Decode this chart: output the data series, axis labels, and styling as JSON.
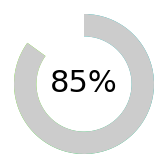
{
  "percentage": 85,
  "label": "85%",
  "empty_color": "#cccccc",
  "background_color": "#ffffff",
  "donut_outer_r": 0.5,
  "donut_width": 0.16,
  "label_fontsize": 22,
  "start_angle": 90,
  "color_stops": [
    [
      0.0,
      [
        0,
        185,
        185
      ]
    ],
    [
      0.15,
      [
        0,
        175,
        175
      ]
    ],
    [
      0.3,
      [
        0,
        170,
        160
      ]
    ],
    [
      0.45,
      [
        0,
        185,
        130
      ]
    ],
    [
      0.58,
      [
        0,
        200,
        80
      ]
    ],
    [
      0.7,
      [
        30,
        215,
        30
      ]
    ],
    [
      0.82,
      [
        80,
        230,
        0
      ]
    ],
    [
      1.0,
      [
        100,
        235,
        0
      ]
    ]
  ],
  "n_segments": 300
}
